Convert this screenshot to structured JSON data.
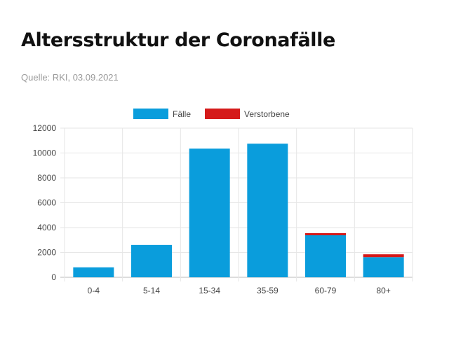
{
  "header": {
    "title": "Altersstruktur der Coronafälle",
    "source": "Quelle: RKI, 03.09.2021"
  },
  "colors": {
    "faelle": "#0a9ddc",
    "verstorbene": "#d51a1a"
  },
  "chart_data": {
    "type": "bar",
    "stacked": true,
    "categories": [
      "0-4",
      "5-14",
      "15-34",
      "35-59",
      "60-79",
      "80+"
    ],
    "series": [
      {
        "name": "Fälle",
        "color": "#0a9ddc",
        "values": [
          800,
          2600,
          10350,
          10750,
          3380,
          1620
        ]
      },
      {
        "name": "Verstorbene",
        "color": "#d51a1a",
        "values": [
          0,
          0,
          0,
          0,
          170,
          230
        ]
      }
    ],
    "ylim": [
      0,
      12000
    ],
    "yticks": [
      0,
      2000,
      4000,
      6000,
      8000,
      10000,
      12000
    ],
    "legend_position": "top",
    "grid": true
  }
}
